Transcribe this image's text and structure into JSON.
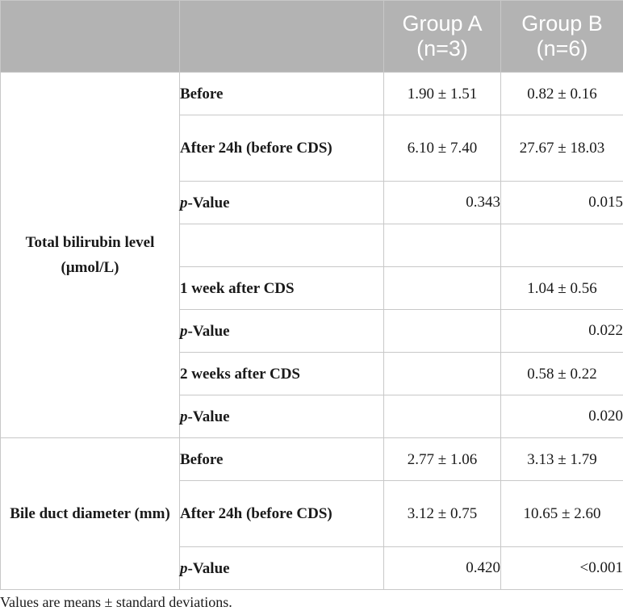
{
  "header": {
    "col_group": "",
    "col_param": "",
    "group_a": "Group A (n=3)",
    "group_b": "Group B (n=6)"
  },
  "sections": [
    {
      "label": "Total bilirubin level (μmol/L)",
      "rows": [
        {
          "param": "Before",
          "a": "1.90 ± 1.51",
          "b": "0.82 ± 0.16"
        },
        {
          "param": "After 24h (before CDS)",
          "a": "6.10 ± 7.40",
          "b": "27.67 ± 18.03"
        },
        {
          "param_italic": "p",
          "param": "-Value",
          "a": "0.343",
          "b": "0.015"
        },
        {
          "param": "",
          "a": "",
          "b": ""
        },
        {
          "param": "1 week after CDS",
          "a": "",
          "b": "1.04 ± 0.56"
        },
        {
          "param_italic": "p",
          "param": "-Value",
          "a": "",
          "b": "0.022"
        },
        {
          "param": "2 weeks after CDS",
          "a": "",
          "b": "0.58 ± 0.22"
        },
        {
          "param_italic": "p",
          "param": "-Value",
          "a": "",
          "b": "0.020"
        }
      ]
    },
    {
      "label": "Bile duct diameter (mm)",
      "rows": [
        {
          "param": "Before",
          "a": "2.77 ± 1.06",
          "b": "3.13 ± 1.79"
        },
        {
          "param": "After 24h (before CDS)",
          "a": "3.12 ± 0.75",
          "b": "10.65 ± 2.60"
        },
        {
          "param_italic": "p",
          "param": "-Value",
          "a": "0.420",
          "b": "<0.001"
        }
      ]
    }
  ],
  "footnote": "Values are means ± standard deviations."
}
